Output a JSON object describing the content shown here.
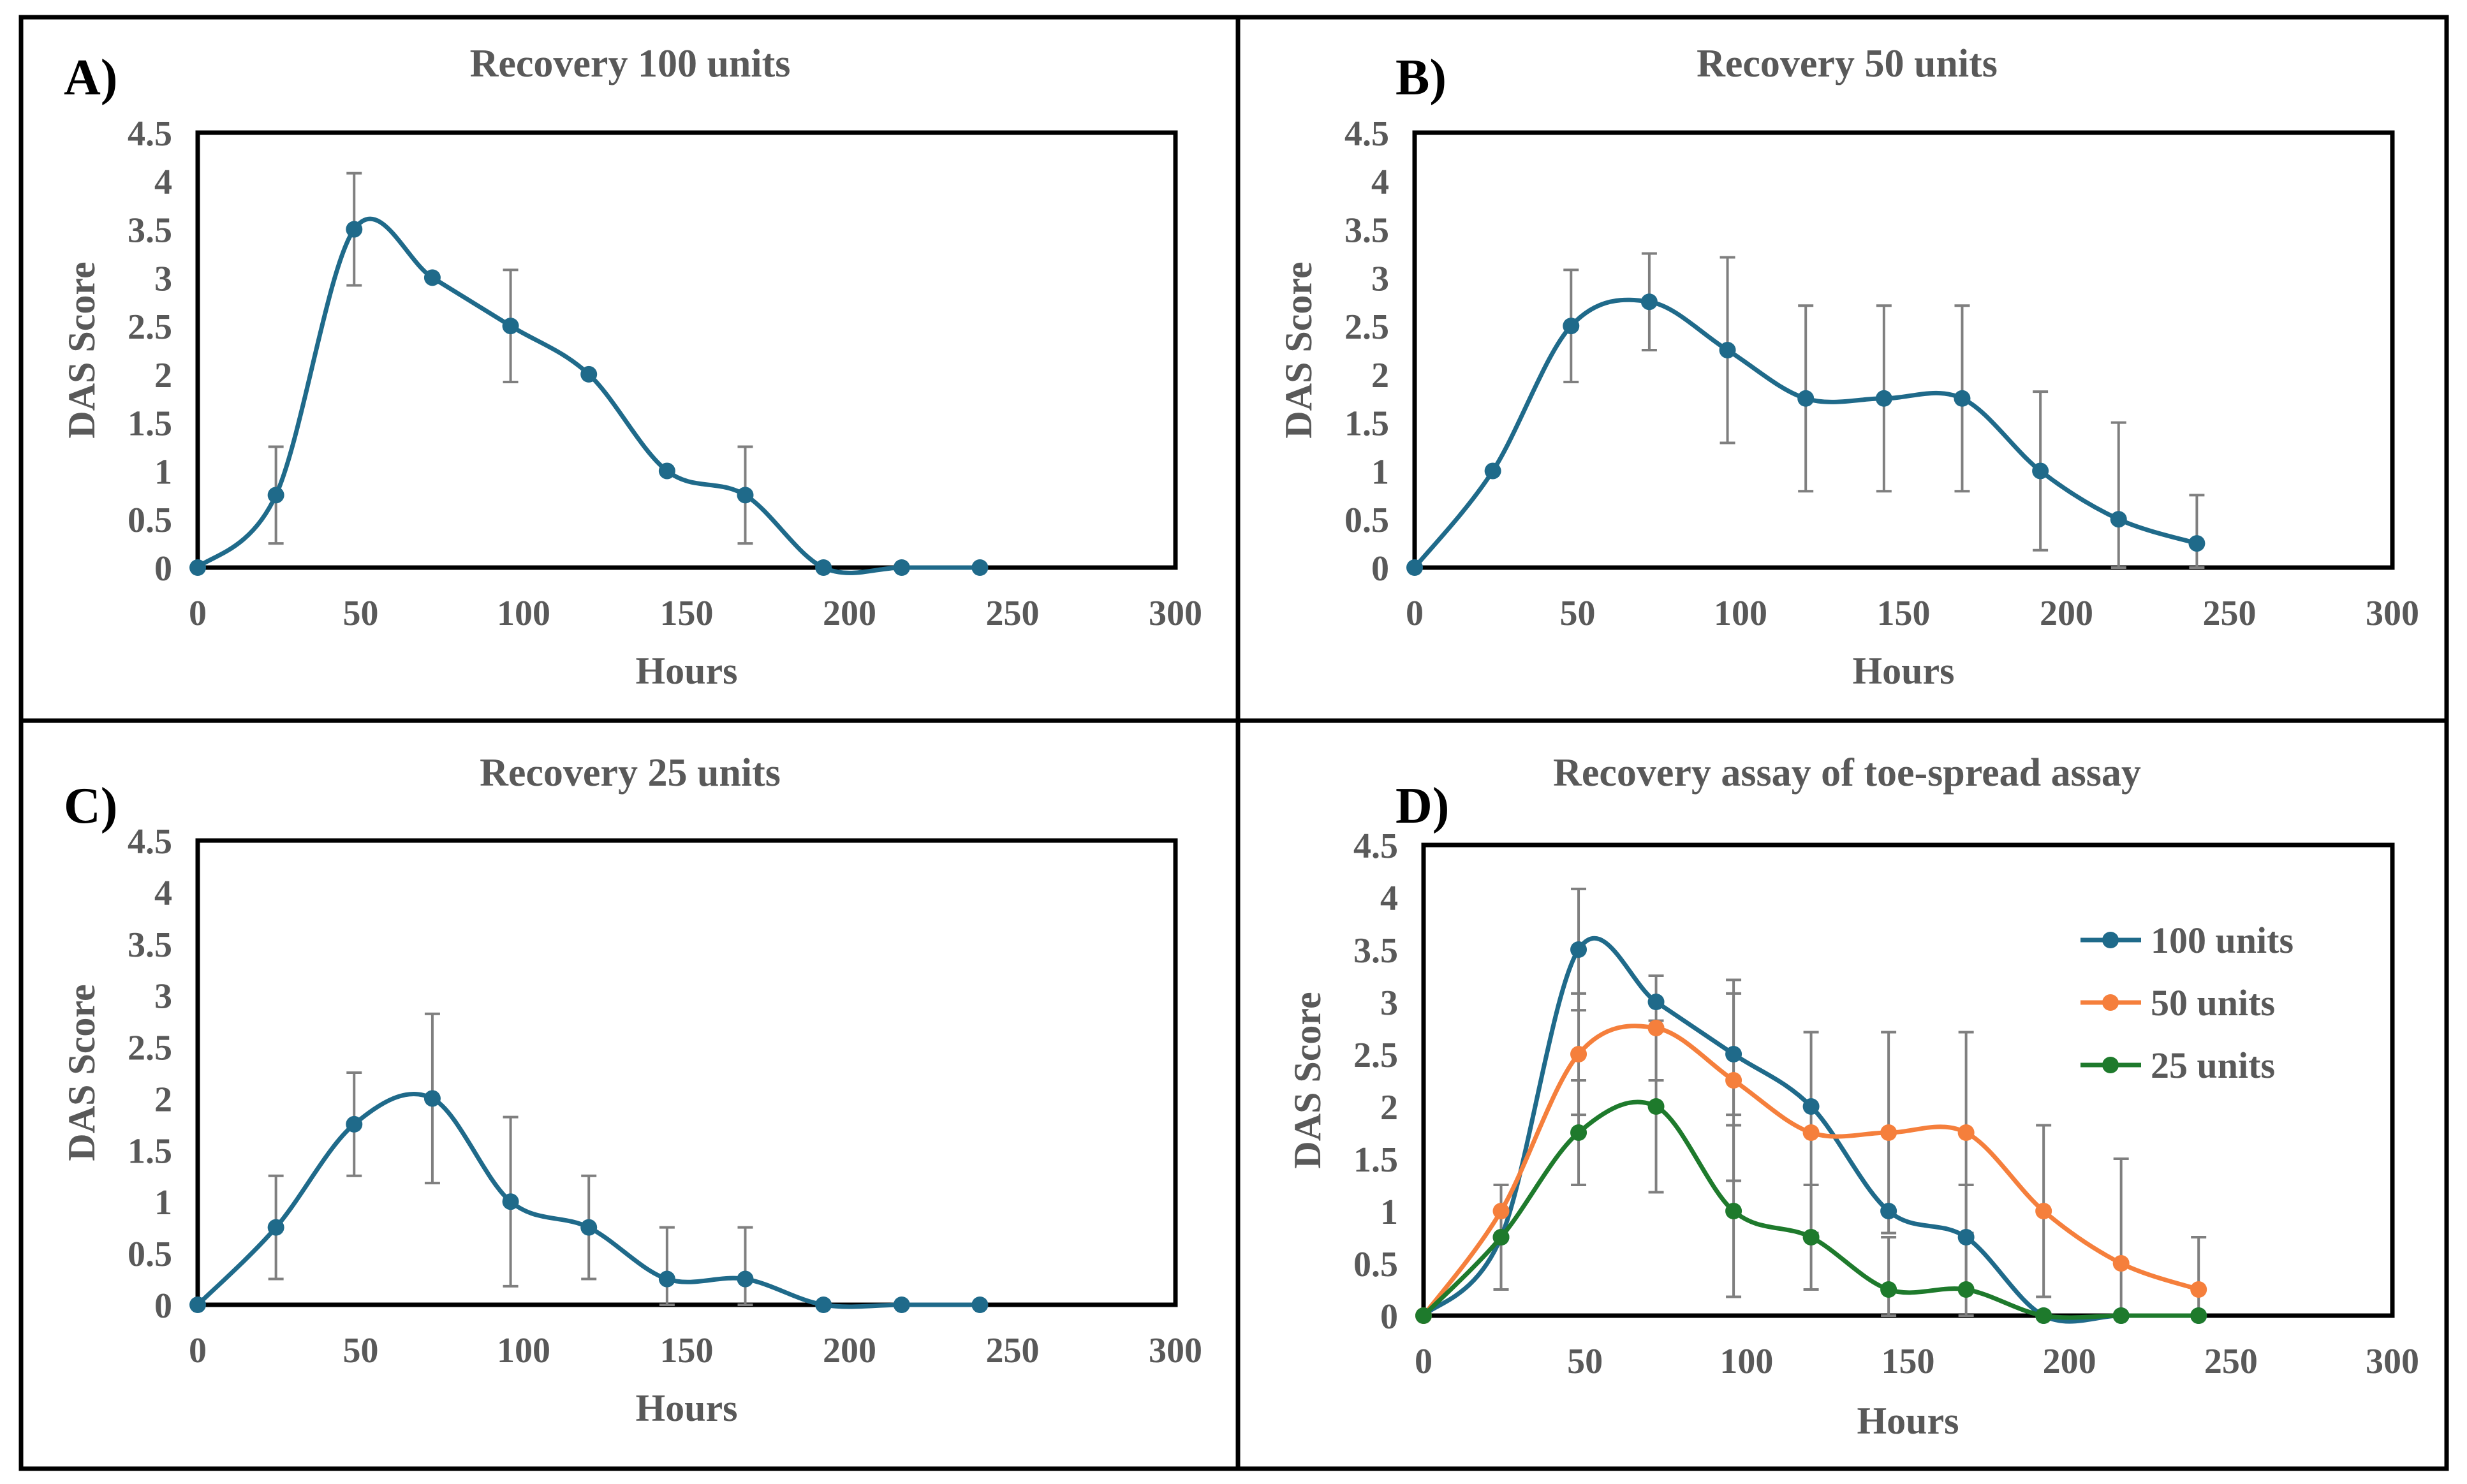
{
  "colors": {
    "series_100": "#1f6a8a",
    "series_50": "#f57f3c",
    "series_25": "#1e7a2c",
    "axis_text": "#595959",
    "frame": "#000000",
    "error_bar": "#7f7f7f"
  },
  "chart_data": [
    {
      "type": "line",
      "panel_letter": "A)",
      "title": "Recovery 100 units",
      "xlabel": "Hours",
      "ylabel": "DAS Score",
      "xlim": [
        0,
        300
      ],
      "ylim": [
        0,
        4.5
      ],
      "xticks": [
        "0",
        "50",
        "100",
        "150",
        "200",
        "250",
        "300"
      ],
      "yticks": [
        "0",
        "0.5",
        "1",
        "1.5",
        "2",
        "2.5",
        "3",
        "3.5",
        "4",
        "4.5"
      ],
      "series": [
        {
          "name": "100 units",
          "color_key": "series_100",
          "x": [
            0,
            24,
            48,
            72,
            96,
            120,
            144,
            168,
            192,
            216,
            240
          ],
          "y": [
            0,
            0.75,
            3.5,
            3.0,
            2.5,
            2.0,
            1.0,
            0.75,
            0,
            0,
            0
          ],
          "err": [
            0,
            0.5,
            0.58,
            0,
            0.58,
            0,
            0,
            0.5,
            0,
            0,
            0
          ]
        }
      ]
    },
    {
      "type": "line",
      "panel_letter": "B)",
      "title": "Recovery 50 units",
      "xlabel": "Hours",
      "ylabel": "DAS Score",
      "xlim": [
        0,
        300
      ],
      "ylim": [
        0,
        4.5
      ],
      "xticks": [
        "0",
        "50",
        "100",
        "150",
        "200",
        "250",
        "300"
      ],
      "yticks": [
        "0",
        "0.5",
        "1",
        "1.5",
        "2",
        "2.5",
        "3",
        "3.5",
        "4",
        "4.5"
      ],
      "series": [
        {
          "name": "50 units",
          "color_key": "series_100",
          "x": [
            0,
            24,
            48,
            72,
            96,
            120,
            144,
            168,
            192,
            216,
            240
          ],
          "y": [
            0,
            1.0,
            2.5,
            2.75,
            2.25,
            1.75,
            1.75,
            1.75,
            1.0,
            0.5,
            0.25
          ],
          "err": [
            0,
            0,
            0.58,
            0.5,
            0.96,
            0.96,
            0.96,
            0.96,
            0.82,
            1.0,
            0.5
          ]
        }
      ]
    },
    {
      "type": "line",
      "panel_letter": "C)",
      "title": "Recovery 25 units",
      "xlabel": "Hours",
      "ylabel": "DAS Score",
      "xlim": [
        0,
        300
      ],
      "ylim": [
        0,
        4.5
      ],
      "xticks": [
        "0",
        "50",
        "100",
        "150",
        "200",
        "250",
        "300"
      ],
      "yticks": [
        "0",
        "0.5",
        "1",
        "1.5",
        "2",
        "2.5",
        "3",
        "3.5",
        "4",
        "4.5"
      ],
      "series": [
        {
          "name": "25 units",
          "color_key": "series_100",
          "x": [
            0,
            24,
            48,
            72,
            96,
            120,
            144,
            168,
            192,
            216,
            240
          ],
          "y": [
            0,
            0.75,
            1.75,
            2.0,
            1.0,
            0.75,
            0.25,
            0.25,
            0,
            0,
            0
          ],
          "err": [
            0,
            0.5,
            0.5,
            0.82,
            0.82,
            0.5,
            0.5,
            0.5,
            0,
            0,
            0
          ]
        }
      ]
    },
    {
      "type": "line",
      "panel_letter": "D)",
      "title": "Recovery assay of toe-spread assay",
      "xlabel": "Hours",
      "ylabel": "DAS Score",
      "xlim": [
        0,
        300
      ],
      "ylim": [
        0,
        4.5
      ],
      "xticks": [
        "0",
        "50",
        "100",
        "150",
        "200",
        "250",
        "300"
      ],
      "yticks": [
        "0",
        "0.5",
        "1",
        "1.5",
        "2",
        "2.5",
        "3",
        "3.5",
        "4",
        "4.5"
      ],
      "legend": "right",
      "series": [
        {
          "name": "100 units",
          "color_key": "series_100",
          "x": [
            0,
            24,
            48,
            72,
            96,
            120,
            144,
            168,
            192,
            216,
            240
          ],
          "y": [
            0,
            0.75,
            3.5,
            3.0,
            2.5,
            2.0,
            1.0,
            0.75,
            0,
            0,
            0
          ],
          "err": [
            0,
            0.5,
            0.58,
            0,
            0.58,
            0,
            0,
            0.5,
            0,
            0,
            0
          ]
        },
        {
          "name": "50 units",
          "color_key": "series_50",
          "x": [
            0,
            24,
            48,
            72,
            96,
            120,
            144,
            168,
            192,
            216,
            240
          ],
          "y": [
            0,
            1.0,
            2.5,
            2.75,
            2.25,
            1.75,
            1.75,
            1.75,
            1.0,
            0.5,
            0.25
          ],
          "err": [
            0,
            0,
            0.58,
            0.5,
            0.96,
            0.96,
            0.96,
            0.96,
            0.82,
            1.0,
            0.5
          ]
        },
        {
          "name": "25 units",
          "color_key": "series_25",
          "x": [
            0,
            24,
            48,
            72,
            96,
            120,
            144,
            168,
            192,
            216,
            240
          ],
          "y": [
            0,
            0.75,
            1.75,
            2.0,
            1.0,
            0.75,
            0.25,
            0.25,
            0,
            0,
            0
          ],
          "err": [
            0,
            0.5,
            0.5,
            0.82,
            0.82,
            0.5,
            0.5,
            0.5,
            0,
            0,
            0
          ]
        }
      ]
    }
  ]
}
